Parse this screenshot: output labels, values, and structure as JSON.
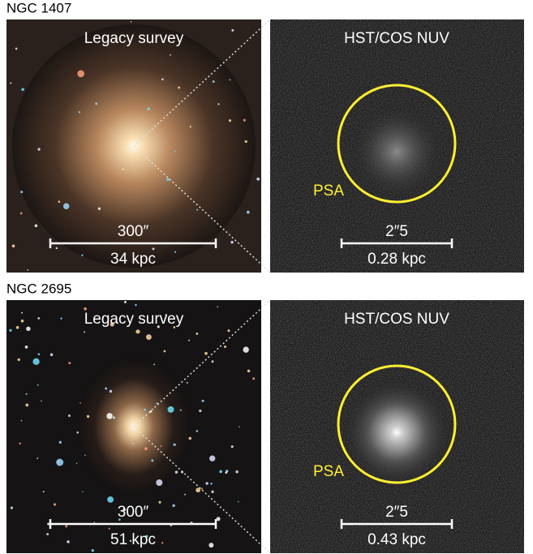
{
  "panels": [
    {
      "name": "NGC 1407",
      "left": {
        "label": "Legacy survey",
        "scale_angle": "300″",
        "scale_physical": "34 kpc"
      },
      "right": {
        "label": "HST/COS NUV",
        "aperture": "PSA",
        "scale_angle": "2″5",
        "scale_physical": "0.28 kpc"
      }
    },
    {
      "name": "NGC 2695",
      "left": {
        "label": "Legacy survey",
        "scale_angle": "300″",
        "scale_physical": "51 kpc"
      },
      "right": {
        "label": "HST/COS NUV",
        "aperture": "PSA",
        "scale_angle": "2″5",
        "scale_physical": "0.43 kpc"
      }
    }
  ]
}
